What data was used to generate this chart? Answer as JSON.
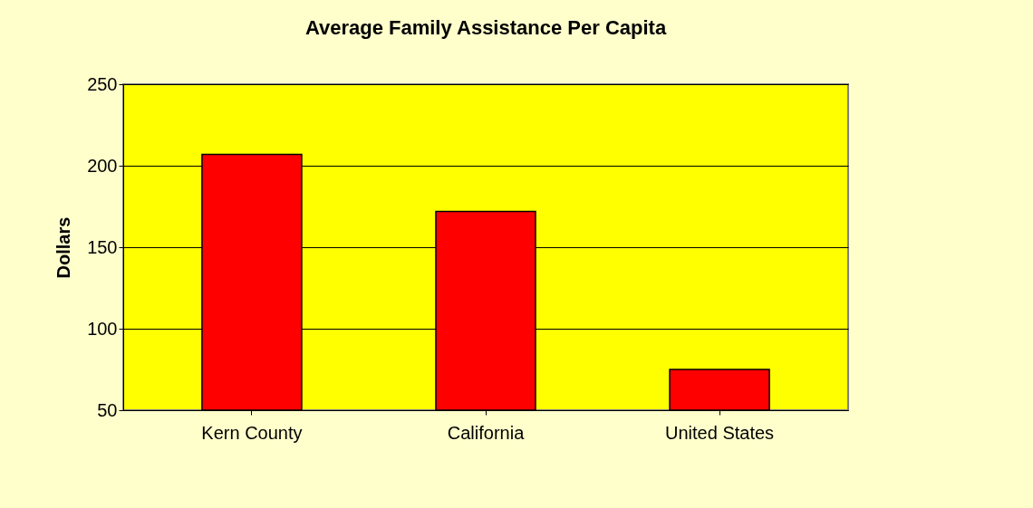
{
  "chart_data": {
    "type": "bar",
    "title": "Average Family Assistance Per Capita",
    "ylabel": "Dollars",
    "categories": [
      "Kern County",
      "California",
      "United States"
    ],
    "values": [
      207,
      172,
      75
    ],
    "color": "#ff0000",
    "ylim": [
      50,
      250
    ],
    "yticks": [
      50,
      100,
      150,
      200,
      250
    ],
    "grid": "y"
  }
}
